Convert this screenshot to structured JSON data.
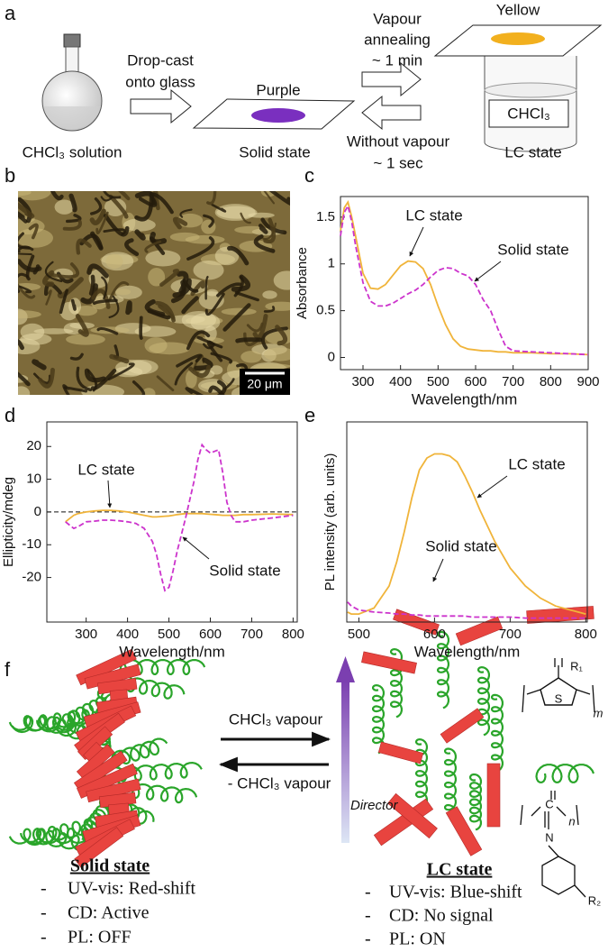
{
  "panel_labels": [
    "a",
    "b",
    "c",
    "d",
    "e",
    "f"
  ],
  "scheme_a": {
    "solution_label": "CHCl₃ solution",
    "dropcast_lines": [
      "Drop-cast",
      "onto glass"
    ],
    "purple_label": "Purple",
    "solid_label": "Solid state",
    "annealing_lines": [
      "Vapour",
      "annealing",
      "~ 1 min"
    ],
    "without_lines": [
      "Without vapour",
      "~ 1 sec"
    ],
    "yellow_label": "Yellow",
    "vial_label": "CHCl₃",
    "lc_label": "LC state"
  },
  "micrograph": {
    "scale_bar": "20 μm"
  },
  "chart_data": [
    {
      "type": "line",
      "xlabel": "Wavelength/nm",
      "ylabel": "Absorbance",
      "xlim": [
        240,
        900
      ],
      "xticks": [
        300,
        400,
        500,
        600,
        700,
        800,
        900
      ],
      "ylim": [
        -0.13,
        1.72
      ],
      "yticks": [
        0,
        0.5,
        1,
        1.5
      ],
      "x": [
        240,
        250,
        260,
        270,
        280,
        300,
        320,
        340,
        360,
        380,
        400,
        420,
        440,
        460,
        480,
        500,
        520,
        540,
        560,
        580,
        600,
        620,
        640,
        660,
        680,
        700,
        750,
        800,
        850,
        900
      ],
      "series": [
        {
          "name": "LC state",
          "color": "#f0b43a",
          "line_style": "solid",
          "values": [
            1.35,
            1.6,
            1.66,
            1.5,
            1.3,
            0.9,
            0.74,
            0.73,
            0.78,
            0.88,
            0.98,
            1.03,
            1.02,
            0.95,
            0.78,
            0.55,
            0.35,
            0.2,
            0.12,
            0.09,
            0.08,
            0.07,
            0.07,
            0.06,
            0.06,
            0.05,
            0.05,
            0.04,
            0.04,
            0.03
          ]
        },
        {
          "name": "Solid state",
          "color": "#cc33cc",
          "line_style": "dashed",
          "values": [
            1.3,
            1.55,
            1.62,
            1.45,
            1.2,
            0.8,
            0.6,
            0.55,
            0.55,
            0.58,
            0.63,
            0.68,
            0.72,
            0.78,
            0.86,
            0.93,
            0.96,
            0.95,
            0.9,
            0.87,
            0.78,
            0.62,
            0.5,
            0.3,
            0.12,
            0.07,
            0.06,
            0.05,
            0.04,
            0.03
          ]
        }
      ]
    },
    {
      "type": "line",
      "xlabel": "Wavelength/nm",
      "ylabel": "Ellipticity/mdeg",
      "xlim": [
        205,
        810
      ],
      "xticks": [
        300,
        400,
        500,
        600,
        700,
        800
      ],
      "ylim": [
        -33.6,
        27.5
      ],
      "yticks": [
        -20,
        -10,
        0,
        10,
        20
      ],
      "zero_line": true,
      "x": [
        250,
        260,
        270,
        280,
        300,
        320,
        340,
        360,
        380,
        400,
        420,
        440,
        460,
        470,
        480,
        490,
        500,
        510,
        520,
        540,
        560,
        570,
        580,
        590,
        600,
        610,
        620,
        630,
        640,
        650,
        660,
        680,
        700,
        750,
        800
      ],
      "series": [
        {
          "name": "LC state",
          "color": "#f0b43a",
          "line_style": "solid",
          "values": [
            -3,
            -2,
            -1,
            -0.5,
            0,
            0.3,
            0.5,
            0.5,
            0.3,
            0,
            -0.5,
            -1,
            -1.5,
            -1.5,
            -1.4,
            -1.3,
            -1.2,
            -1,
            -0.8,
            -0.5,
            -0.5,
            -0.5,
            -0.5,
            -0.6,
            -0.7,
            -0.8,
            -0.9,
            -1,
            -1,
            -1,
            -1,
            -0.8,
            -0.8,
            -0.6,
            -0.8
          ]
        },
        {
          "name": "Solid state",
          "color": "#cc33cc",
          "line_style": "dashed",
          "values": [
            -3,
            -4,
            -5,
            -4.5,
            -3,
            -2.8,
            -2.5,
            -2.5,
            -2.7,
            -3,
            -3.5,
            -5,
            -9,
            -13,
            -19,
            -24,
            -23,
            -18,
            -12,
            -2,
            9,
            16,
            20.5,
            19,
            18,
            18.5,
            19,
            12,
            3,
            -1,
            -3,
            -3,
            -2.5,
            -1.8,
            -1
          ]
        }
      ]
    },
    {
      "type": "line",
      "xlabel": "Wavelength/nm",
      "ylabel": "PL intensity (arb. units)",
      "xlim": [
        484,
        802
      ],
      "xticks": [
        500,
        600,
        700,
        800
      ],
      "ylim": [
        0,
        1
      ],
      "x": [
        485,
        490,
        500,
        520,
        540,
        550,
        560,
        570,
        580,
        590,
        600,
        610,
        620,
        630,
        640,
        650,
        660,
        680,
        700,
        720,
        740,
        760,
        780,
        800
      ],
      "series": [
        {
          "name": "LC state",
          "color": "#f0b43a",
          "line_style": "solid",
          "values": [
            0.05,
            0.04,
            0.04,
            0.07,
            0.18,
            0.3,
            0.45,
            0.62,
            0.76,
            0.82,
            0.84,
            0.84,
            0.83,
            0.8,
            0.73,
            0.65,
            0.56,
            0.4,
            0.27,
            0.18,
            0.12,
            0.08,
            0.06,
            0.04
          ]
        },
        {
          "name": "Solid state",
          "color": "#cc33cc",
          "line_style": "dashed",
          "values": [
            0.1,
            0.08,
            0.06,
            0.05,
            0.045,
            0.04,
            0.04,
            0.035,
            0.035,
            0.03,
            0.03,
            0.03,
            0.03,
            0.03,
            0.03,
            0.025,
            0.025,
            0.025,
            0.025,
            0.02,
            0.02,
            0.02,
            0.02,
            0.02
          ]
        }
      ]
    }
  ],
  "scheme_f": {
    "forward": "CHCl₃ vapour",
    "backward": "- CHCl₃ vapour",
    "director": "Director",
    "solid_title": "Solid state",
    "solid_items": [
      "UV-vis: Red-shift",
      "CD: Active",
      "PL: OFF"
    ],
    "lc_title": "LC state",
    "lc_items": [
      "UV-vis: Blue-shift",
      "CD: No signal",
      "PL: ON"
    ],
    "bullet": "-",
    "chem": {
      "r1": "R₁",
      "sulfur": "S",
      "m": "m",
      "n": "n",
      "carbon": "C",
      "nitrogen": "N",
      "r2": "R₂"
    }
  }
}
